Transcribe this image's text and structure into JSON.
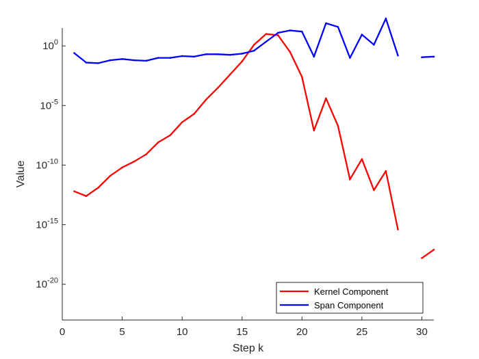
{
  "chart_data": {
    "type": "line",
    "xlabel": "Step k",
    "ylabel": "Value",
    "xlim": [
      0,
      31
    ],
    "ylim_log10": [
      -23,
      1.5
    ],
    "yscale": "log",
    "grid": false,
    "legend_position": "bottom-right",
    "x_ticks": [
      0,
      5,
      10,
      15,
      20,
      25,
      30
    ],
    "y_ticks": [
      {
        "exp": 0,
        "base": "10",
        "sup": "0"
      },
      {
        "exp": -5,
        "base": "10",
        "sup": "-5"
      },
      {
        "exp": -10,
        "base": "10",
        "sup": "-10"
      },
      {
        "exp": -15,
        "base": "10",
        "sup": "-15"
      },
      {
        "exp": -20,
        "base": "10",
        "sup": "-20"
      }
    ],
    "series": [
      {
        "name": "Kernel Component",
        "color": "#ff0000",
        "x": [
          1,
          2,
          3,
          4,
          5,
          6,
          7,
          8,
          9,
          10,
          11,
          12,
          13,
          14,
          15,
          16,
          17,
          18,
          19,
          20,
          21,
          22,
          23,
          24,
          25,
          26,
          27,
          28,
          29,
          30,
          31
        ],
        "log10_y": [
          -12.2,
          -12.6,
          -11.9,
          -10.9,
          -10.2,
          -9.7,
          -9.1,
          -8.1,
          -7.5,
          -6.4,
          -5.7,
          -4.5,
          -3.5,
          -2.4,
          -1.3,
          0.1,
          1.0,
          0.9,
          -0.5,
          -2.6,
          -7.1,
          -4.4,
          -6.7,
          -11.2,
          -9.5,
          -12.1,
          -10.5,
          -15.4,
          null,
          -17.8,
          -17.1
        ]
      },
      {
        "name": "Span Component",
        "color": "#0000ff",
        "x": [
          1,
          2,
          3,
          4,
          5,
          6,
          7,
          8,
          9,
          10,
          11,
          12,
          13,
          14,
          15,
          16,
          17,
          18,
          19,
          20,
          21,
          22,
          23,
          24,
          25,
          26,
          27,
          28,
          29,
          30,
          31
        ],
        "log10_y": [
          -0.6,
          -1.4,
          -1.45,
          -1.2,
          -1.1,
          -1.2,
          -1.25,
          -1.0,
          -1.0,
          -0.85,
          -0.9,
          -0.7,
          -0.7,
          -0.75,
          -0.65,
          -0.4,
          0.35,
          1.1,
          1.3,
          1.2,
          -0.9,
          1.9,
          1.6,
          -1.0,
          0.95,
          0.1,
          2.3,
          -0.8,
          null,
          -0.95,
          -0.9
        ]
      }
    ]
  }
}
